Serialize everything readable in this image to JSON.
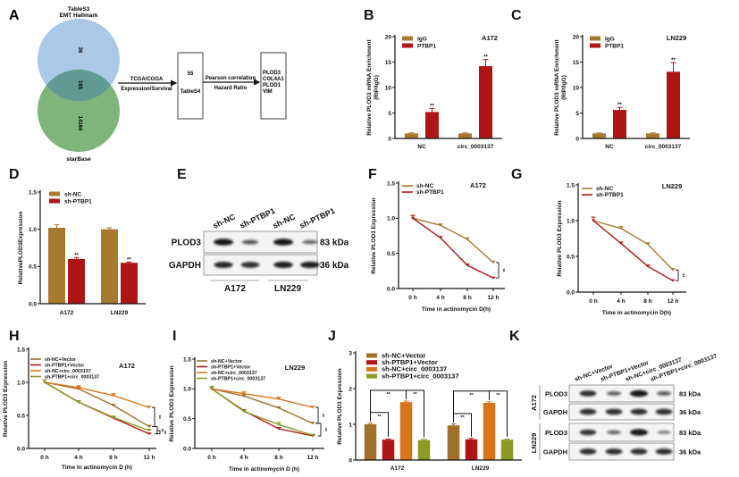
{
  "venn": {
    "panel": "A",
    "top_set": [
      "TableS3",
      "EMT Hallmark"
    ],
    "bottom_set": "starBase",
    "counts": {
      "top_only": "36",
      "overlap": "165",
      "bottom_only": "14166"
    },
    "colors": {
      "top": "#a9c9e6",
      "bottom": "#7fb57a",
      "overlap": "#5f9a94"
    },
    "arrow1": [
      "TCGA/CGGA",
      "Expression/Survival"
    ],
    "box1": [
      "55",
      "TableS4"
    ],
    "arrow2": [
      "Pearson correlation",
      "Hazard Ratio"
    ],
    "box2": [
      "PLOD3",
      "COL4A1",
      "PLOD1",
      "VIM"
    ]
  },
  "blot_e": {
    "panel": "E",
    "columns": [
      "sh-NC",
      "sh-PTBP1",
      "sh-NC",
      "sh-PTBP1"
    ],
    "rows": [
      {
        "label": "PLOD3",
        "kda": "83 kDa",
        "intensity": [
          1.0,
          0.55,
          1.0,
          0.45
        ]
      },
      {
        "label": "GAPDH",
        "kda": "36 kDa",
        "intensity": [
          0.9,
          0.85,
          0.95,
          0.95
        ]
      }
    ],
    "groups": [
      "A172",
      "LN229"
    ]
  },
  "blot_k": {
    "panel": "K",
    "columns": [
      "sh-NC+Vector",
      "sh-PTBP1+Vector",
      "sh-NC+circ_0003137",
      "sh-PTBP1+circ_0003137"
    ],
    "blocks": [
      {
        "cell": "A172",
        "rows": [
          {
            "label": "PLOD3",
            "kda": "83 kDa",
            "intensity": [
              0.85,
              0.5,
              1.0,
              0.5
            ]
          },
          {
            "label": "GAPDH",
            "kda": "36 kDa",
            "intensity": [
              0.85,
              0.85,
              0.85,
              0.85
            ]
          }
        ]
      },
      {
        "cell": "LN229",
        "rows": [
          {
            "label": "PLOD3",
            "kda": "83 kDa",
            "intensity": [
              0.8,
              0.45,
              1.0,
              0.3
            ]
          },
          {
            "label": "GAPDH",
            "kda": "36 kDa",
            "intensity": [
              0.85,
              0.85,
              0.85,
              0.85
            ]
          }
        ]
      }
    ]
  },
  "chart_data": [
    {
      "panel": "B",
      "type": "bar",
      "title": "A172",
      "ylabel": [
        "Relative PLOD3 mRNA Enrichment",
        "(RIP/IgG)"
      ],
      "ylim": [
        0,
        20
      ],
      "ytick_labels": [
        "0",
        "5",
        "10",
        "15",
        "20"
      ],
      "categories": [
        "NC",
        "circ_0003137"
      ],
      "series": [
        {
          "name": "IgG",
          "color": "#a87a2e",
          "values": [
            1.0,
            1.0
          ],
          "errors": [
            0.1,
            0.1
          ],
          "sig": [
            "",
            ""
          ]
        },
        {
          "name": "PTBP1",
          "color": "#b01515",
          "values": [
            5.2,
            14.2
          ],
          "errors": [
            0.7,
            1.3
          ],
          "sig": [
            "**",
            "**"
          ]
        }
      ],
      "legend": "top-left"
    },
    {
      "panel": "C",
      "type": "bar",
      "title": "LN229",
      "ylabel": [
        "Relative PLOD3 mRNA Enrichment",
        "(RIP/IgG)"
      ],
      "ylim": [
        0,
        20
      ],
      "ytick_labels": [
        "0",
        "5",
        "10",
        "15",
        "20"
      ],
      "categories": [
        "NC",
        "circ_0003137"
      ],
      "series": [
        {
          "name": "IgG",
          "color": "#a87a2e",
          "values": [
            1.0,
            1.0
          ],
          "errors": [
            0.1,
            0.1
          ],
          "sig": [
            "",
            ""
          ]
        },
        {
          "name": "PTBP1",
          "color": "#b01515",
          "values": [
            5.6,
            13.1
          ],
          "errors": [
            0.5,
            1.8
          ],
          "sig": [
            "**",
            "**"
          ]
        }
      ],
      "legend": "top-left"
    },
    {
      "panel": "D",
      "type": "bar",
      "title": "",
      "ylabel": [
        "RelativePLOD3Expression"
      ],
      "ylim": [
        0,
        1.5
      ],
      "ytick_labels": [
        "0.0",
        "0.5",
        "1.0",
        "1.5"
      ],
      "categories": [
        "A172",
        "LN229"
      ],
      "series": [
        {
          "name": "sh-NC",
          "color": "#a87a2e",
          "values": [
            1.02,
            1.0
          ],
          "errors": [
            0.04,
            0.02
          ],
          "sig": [
            "",
            ""
          ]
        },
        {
          "name": "sh-PTBP1",
          "color": "#b01515",
          "values": [
            0.6,
            0.55
          ],
          "errors": [
            0.02,
            0.01
          ],
          "sig": [
            "**",
            "**"
          ]
        }
      ],
      "legend": "top-left"
    },
    {
      "panel": "F",
      "type": "line",
      "title": "A172",
      "ylabel": [
        "Relative PLOD3 Expression"
      ],
      "xlabel": "Time in actinomycin  D(h)",
      "ylim": [
        0,
        1.5
      ],
      "ytick_labels": [
        "0.0",
        "0.5",
        "1.0",
        "1.5"
      ],
      "x": [
        "0 h",
        "4 h",
        "8 h",
        "12 h"
      ],
      "series": [
        {
          "name": "sh-NC",
          "color": "#a87a2e",
          "values": [
            1.0,
            0.9,
            0.7,
            0.37
          ],
          "errors": [
            0.04,
            0.02,
            0.02,
            0.02
          ]
        },
        {
          "name": "sh-PTBP1",
          "color": "#b01515",
          "values": [
            1.0,
            0.72,
            0.33,
            0.15
          ],
          "errors": [
            0.04,
            0.02,
            0.02,
            0.01
          ]
        }
      ],
      "brackets": [
        {
          "from": 0,
          "to": 1,
          "label": "**"
        }
      ],
      "legend": "top-left"
    },
    {
      "panel": "G",
      "type": "line",
      "title": "LN229",
      "ylabel": [
        "Relative PLOD3 Expression"
      ],
      "xlabel": "Time in actinomycin  D(h)",
      "ylim": [
        0,
        1.5
      ],
      "ytick_labels": [
        "0.0",
        "0.5",
        "1.0",
        "1.5"
      ],
      "x": [
        "0 h",
        "4 h",
        "8 h",
        "12 h"
      ],
      "series": [
        {
          "name": "sh-NC",
          "color": "#a87a2e",
          "values": [
            1.0,
            0.89,
            0.67,
            0.31
          ],
          "errors": [
            0.05,
            0.03,
            0.02,
            0.02
          ]
        },
        {
          "name": "sh-PTBP1",
          "color": "#b01515",
          "values": [
            1.0,
            0.68,
            0.36,
            0.16
          ],
          "errors": [
            0.05,
            0.02,
            0.02,
            0.01
          ]
        }
      ],
      "brackets": [
        {
          "from": 0,
          "to": 1,
          "label": "**"
        }
      ],
      "legend": "top-left"
    },
    {
      "panel": "H",
      "type": "line",
      "title": "A172",
      "ylabel": [
        "Relative PLOD3 Expression"
      ],
      "xlabel": "Time in actinomycin  D (h)",
      "ylim": [
        0,
        1.5
      ],
      "ytick_labels": [
        "0.0",
        "0.5",
        "1.0",
        "1.5"
      ],
      "x": [
        "0 h",
        "4 h",
        "8 h",
        "12 h"
      ],
      "series": [
        {
          "name": "sh-NC+Vector",
          "color": "#a0702a",
          "values": [
            1.0,
            0.9,
            0.65,
            0.33
          ],
          "errors": [
            0.04,
            0.03,
            0.02,
            0.02
          ]
        },
        {
          "name": "sh-PTBP1+Vector",
          "color": "#b01515",
          "values": [
            1.0,
            0.7,
            0.46,
            0.22
          ],
          "errors": [
            0.04,
            0.02,
            0.02,
            0.01
          ]
        },
        {
          "name": "sh-NC+circ_0003137",
          "color": "#d8741a",
          "values": [
            1.0,
            0.92,
            0.8,
            0.62
          ],
          "errors": [
            0.04,
            0.03,
            0.03,
            0.02
          ]
        },
        {
          "name": "sh-PTBP1+circ_0003137",
          "color": "#8a9a25",
          "values": [
            1.0,
            0.7,
            0.47,
            0.27
          ],
          "errors": [
            0.04,
            0.02,
            0.02,
            0.02
          ]
        }
      ],
      "brackets": [
        {
          "from": 2,
          "to": 0,
          "label": "**"
        },
        {
          "from": 0,
          "to": 1,
          "label": "**"
        },
        {
          "from": 3,
          "to": 1,
          "label": "**"
        }
      ],
      "legend": "top-left"
    },
    {
      "panel": "I",
      "type": "line",
      "title": "LN229",
      "ylabel": [
        "Relative PLOD3 Expression"
      ],
      "xlabel": "Time in actinomycin  D (h)",
      "ylim": [
        0,
        1.5
      ],
      "ytick_labels": [
        "0.0",
        "0.5",
        "1.0",
        "1.5"
      ],
      "x": [
        "0 h",
        "4 h",
        "8 h",
        "12 h"
      ],
      "series": [
        {
          "name": "sh-NC+Vector",
          "color": "#a0702a",
          "values": [
            1.0,
            0.88,
            0.68,
            0.42
          ],
          "errors": [
            0.04,
            0.03,
            0.02,
            0.02
          ]
        },
        {
          "name": "sh-PTBP1+Vector",
          "color": "#b01515",
          "values": [
            1.0,
            0.63,
            0.33,
            0.21
          ],
          "errors": [
            0.04,
            0.02,
            0.02,
            0.01
          ]
        },
        {
          "name": "sh-NC+circ_0003137",
          "color": "#d8741a",
          "values": [
            1.0,
            0.92,
            0.83,
            0.69
          ],
          "errors": [
            0.04,
            0.03,
            0.03,
            0.02
          ]
        },
        {
          "name": "sh-PTBP1+circ_0003137",
          "color": "#8a9a25",
          "values": [
            1.0,
            0.62,
            0.4,
            0.22
          ],
          "errors": [
            0.04,
            0.02,
            0.04,
            0.02
          ]
        }
      ],
      "brackets": [
        {
          "from": 2,
          "to": 0,
          "label": "**"
        },
        {
          "from": 0,
          "to": 1,
          "label": "**"
        }
      ],
      "legend": "top-left"
    },
    {
      "panel": "J",
      "type": "bar",
      "title": "",
      "ylabel": [
        "Relative PLOD3 Expression"
      ],
      "ylim": [
        0,
        3
      ],
      "ytick_labels": [
        "0",
        "1",
        "2",
        "3"
      ],
      "categories": [
        "A172",
        "LN229"
      ],
      "series": [
        {
          "name": "sh-NC+Vector",
          "color": "#a0702a",
          "values": [
            1.0,
            0.97
          ],
          "errors": [
            0.03,
            0.04
          ],
          "sig": [
            "",
            ""
          ]
        },
        {
          "name": "sh-PTBP1+Vector",
          "color": "#b01515",
          "values": [
            0.57,
            0.58
          ],
          "errors": [
            0.02,
            0.03
          ],
          "sig": [
            "",
            ""
          ]
        },
        {
          "name": "sh-NC+circ_0003137",
          "color": "#d8741a",
          "values": [
            1.62,
            1.6
          ],
          "errors": [
            0.03,
            0.03
          ],
          "sig": [
            "",
            ""
          ]
        },
        {
          "name": "sh-PTBP1+circ_0003137",
          "color": "#8a9a25",
          "values": [
            0.56,
            0.57
          ],
          "errors": [
            0.02,
            0.02
          ],
          "sig": [
            "",
            ""
          ]
        }
      ],
      "comparisons": [
        {
          "category": 0,
          "from": 0,
          "to": 1,
          "label": "**"
        },
        {
          "category": 0,
          "from": 0,
          "to": 2,
          "label": "**"
        },
        {
          "category": 0,
          "from": 2,
          "to": 3,
          "label": "**"
        },
        {
          "category": 1,
          "from": 0,
          "to": 1,
          "label": "**"
        },
        {
          "category": 1,
          "from": 0,
          "to": 2,
          "label": "**"
        },
        {
          "category": 1,
          "from": 2,
          "to": 3,
          "label": "**"
        }
      ],
      "legend": "top-left"
    }
  ]
}
